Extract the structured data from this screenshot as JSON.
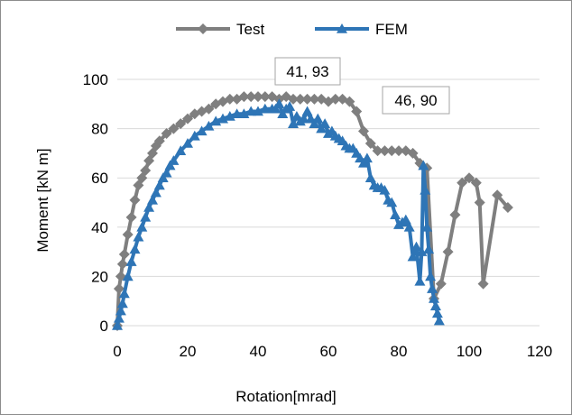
{
  "chart_data": {
    "type": "line",
    "xlabel": "Rotation[mrad]",
    "ylabel": "Moment [kN m]",
    "xlim": [
      0,
      120
    ],
    "ylim": [
      0,
      100
    ],
    "xticks": [
      0,
      20,
      40,
      60,
      80,
      100,
      120
    ],
    "yticks": [
      0,
      20,
      40,
      60,
      80,
      100
    ],
    "grid": "horizontal",
    "legend_position": "top",
    "annotations": [
      {
        "text": "41, 93",
        "x": 41,
        "y": 93
      },
      {
        "text": "46, 90",
        "x": 46,
        "y": 90
      }
    ],
    "series": [
      {
        "name": "Test",
        "color": "#7f7f7f",
        "marker": "diamond",
        "x": [
          0,
          0.5,
          1,
          1.5,
          2,
          3,
          4,
          5,
          6,
          7,
          8,
          9,
          10,
          11,
          12,
          14,
          16,
          18,
          20,
          22,
          24,
          26,
          28,
          30,
          32,
          34,
          36,
          38,
          40,
          42,
          44,
          46,
          48,
          50,
          52,
          54,
          56,
          58,
          60,
          62,
          64,
          66,
          68,
          70,
          72,
          74,
          76,
          78,
          80,
          82,
          84,
          86,
          88,
          90,
          92,
          94,
          96,
          98,
          100,
          102,
          103,
          104,
          108,
          111
        ],
        "y": [
          0,
          15,
          20,
          25,
          29,
          37,
          44,
          51,
          57,
          60,
          63,
          67,
          70,
          73,
          75,
          78,
          80,
          82,
          84,
          86,
          87,
          88,
          90,
          91,
          92,
          92,
          93,
          93,
          93,
          93,
          93,
          92,
          93,
          92,
          92,
          92,
          92,
          92,
          91,
          92,
          92,
          91,
          87,
          79,
          74,
          71,
          71,
          71,
          71,
          71,
          70,
          66,
          64,
          11,
          17,
          30,
          45,
          58,
          60,
          58,
          50,
          17,
          53,
          48
        ]
      },
      {
        "name": "FEM",
        "color": "#2e75b6",
        "marker": "triangle",
        "x": [
          0,
          0.5,
          1,
          1.5,
          2,
          3,
          4,
          5,
          6,
          7,
          8,
          9,
          10,
          11,
          12,
          13,
          14,
          15,
          16,
          18,
          20,
          22,
          24,
          26,
          28,
          30,
          32,
          34,
          36,
          38,
          40,
          42,
          44,
          45,
          46,
          47,
          48,
          49,
          50,
          51,
          52,
          53,
          54,
          55,
          56,
          57,
          58,
          59,
          60,
          61,
          62,
          63,
          64,
          65,
          66,
          67,
          68,
          69,
          70,
          71,
          72,
          73,
          74,
          75,
          76,
          77,
          78,
          79,
          80,
          81,
          82,
          83,
          84,
          85,
          86,
          86.5,
          87,
          87.5,
          88,
          88.5,
          89,
          89.5,
          90,
          90.5,
          91,
          91.5
        ],
        "y": [
          0,
          3,
          6,
          9,
          13,
          20,
          26,
          31,
          36,
          40,
          44,
          48,
          51,
          54,
          57,
          60,
          62,
          65,
          67,
          71,
          74,
          77,
          79,
          81,
          83,
          84,
          85,
          86,
          86,
          87,
          87,
          88,
          88,
          88,
          90,
          86,
          88,
          89,
          82,
          85,
          83,
          84,
          87,
          84,
          82,
          84,
          80,
          82,
          78,
          79,
          77,
          76,
          75,
          73,
          72,
          72,
          70,
          68,
          66,
          68,
          60,
          57,
          56,
          56,
          55,
          51,
          50,
          45,
          41,
          42,
          43,
          40,
          28,
          32,
          18,
          30,
          65,
          55,
          40,
          31,
          20,
          15,
          11,
          8,
          5,
          2
        ]
      }
    ]
  }
}
